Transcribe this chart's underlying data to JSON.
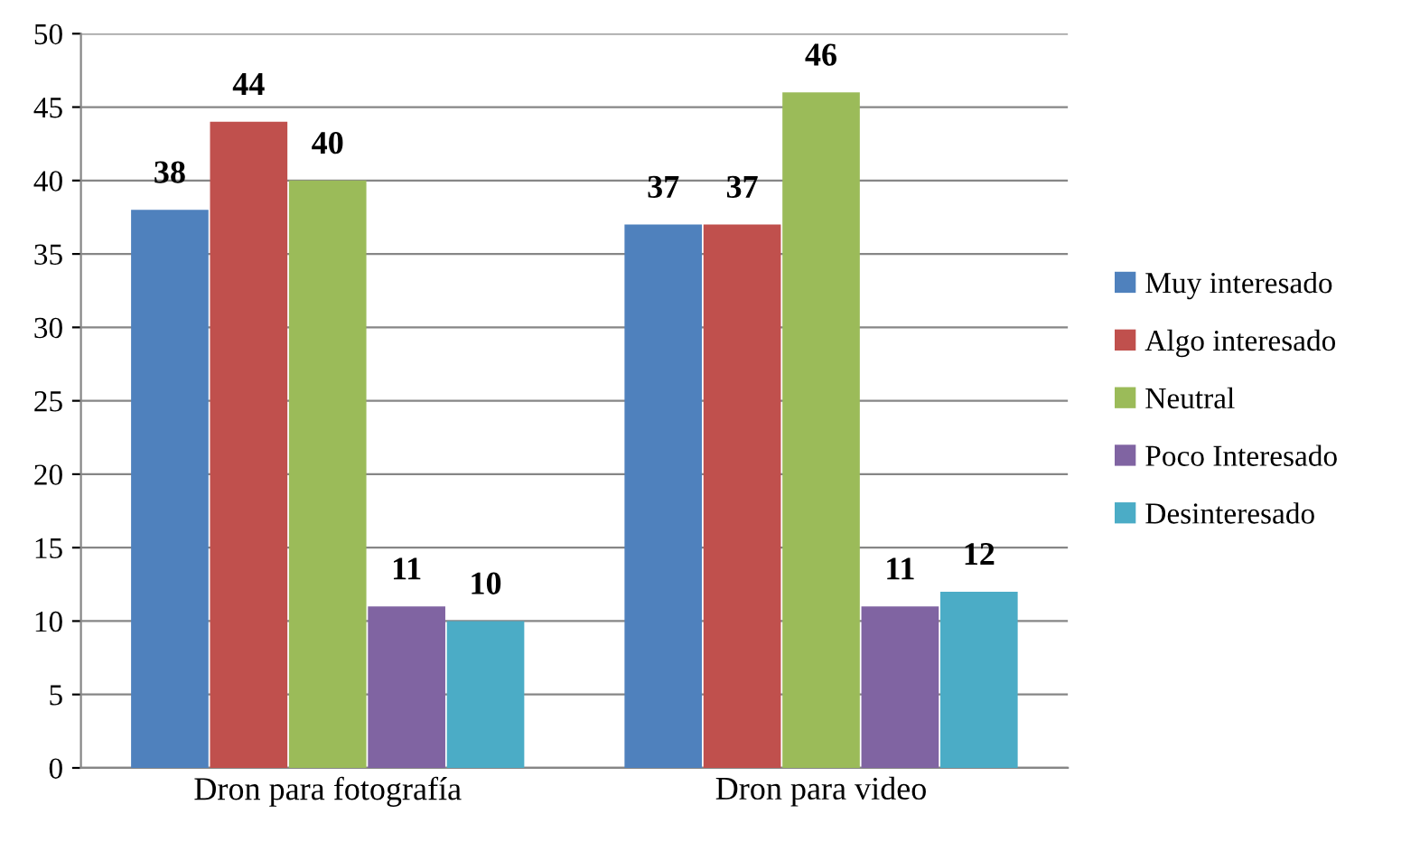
{
  "chart_data": {
    "type": "bar",
    "categories": [
      "Dron para fotografía",
      "Dron para video"
    ],
    "series": [
      {
        "name": "Muy interesado",
        "color": "#4f81bd",
        "values": [
          38,
          37
        ]
      },
      {
        "name": "Algo interesado",
        "color": "#c0504d",
        "values": [
          44,
          37
        ]
      },
      {
        "name": "Neutral",
        "color": "#9bbb59",
        "values": [
          40,
          46
        ]
      },
      {
        "name": "Poco Interesado",
        "color": "#8064a2",
        "values": [
          11,
          11
        ]
      },
      {
        "name": "Desinteresado",
        "color": "#4bacc6",
        "values": [
          10,
          12
        ]
      }
    ],
    "ylim": [
      0,
      50
    ],
    "yticks": [
      0,
      5,
      10,
      15,
      20,
      25,
      30,
      35,
      40,
      45,
      50
    ],
    "grid": "y",
    "legend": "right",
    "data_labels": true
  }
}
